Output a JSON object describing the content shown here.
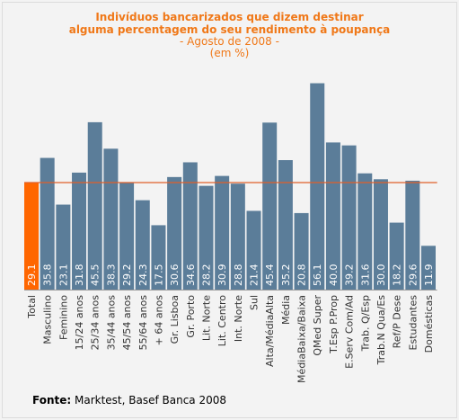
{
  "chart_data": {
    "type": "bar",
    "title_line1": "Indivíduos bancarizados que dizem destinar",
    "title_line2": "alguma percentagem do seu rendimento à poupança",
    "subtitle": "- Agosto de 2008 -",
    "units": "(em %)",
    "categories": [
      "Total",
      "Masculino",
      "Feminino",
      "15/24 anos",
      "25/34 anos",
      "35/44 anos",
      "45/54 anos",
      "55/64 anos",
      "+ 64 anos",
      "Gr. Lisboa",
      "Gr. Porto",
      "Lit. Norte",
      "Lit. Centro",
      "Int. Norte",
      "Sul",
      "Alta/MédiaAlta",
      "Média",
      "MédiaBaixa/Baixa",
      "QMed Super",
      "T.Esp P.Prop",
      "E.Serv Com/Ad",
      "Trab. Q/Esp",
      "Trab.N Qua/Es",
      "Ref/P Dese",
      "Estudantes",
      "Domésticas"
    ],
    "values": [
      29.1,
      35.8,
      23.1,
      31.8,
      45.5,
      38.3,
      29.2,
      24.3,
      17.5,
      30.6,
      34.6,
      28.2,
      30.9,
      28.8,
      21.4,
      45.4,
      35.2,
      20.8,
      56.1,
      40.0,
      39.2,
      31.6,
      30.0,
      18.2,
      29.6,
      11.9
    ],
    "value_labels": [
      "29.1",
      "35.8",
      "23.1",
      "31.8",
      "45.5",
      "38.3",
      "29.2",
      "24.3",
      "17.5",
      "30.6",
      "34.6",
      "28.2",
      "30.9",
      "28.8",
      "21.4",
      "45.4",
      "35.2",
      "20.8",
      "56.1",
      "40.0",
      "39.2",
      "31.6",
      "30.0",
      "18.2",
      "29.6",
      "11.9"
    ],
    "highlight_index": 0,
    "reference_line_value": 29.1,
    "ylim": [
      0,
      60
    ],
    "colors": {
      "bar": "#5b7d99",
      "highlight_bar": "#ff6600",
      "reference_line": "#e0602a",
      "axis": "#999999",
      "value_label": "#ffffff",
      "title": "#f07818"
    }
  },
  "footer": {
    "source_label": "Fonte:",
    "source_text": " Marktest, Basef Banca 2008"
  }
}
